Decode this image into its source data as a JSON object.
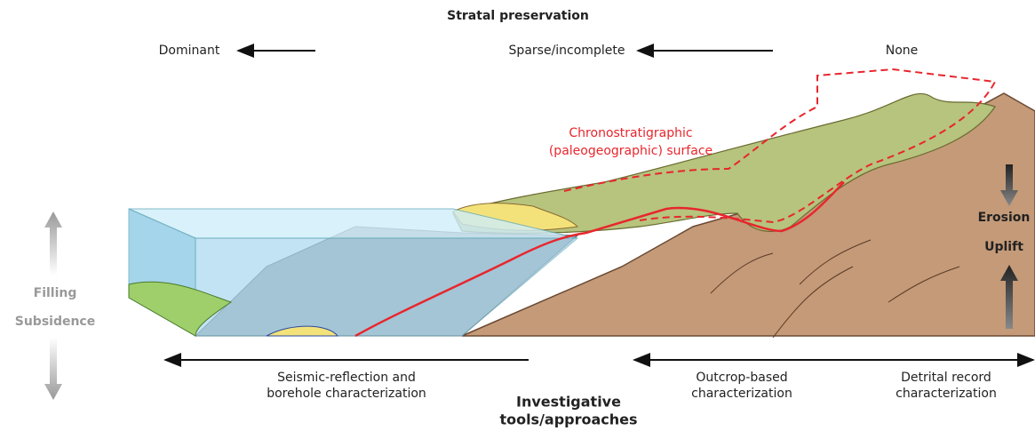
{
  "top_axis": {
    "title": "Stratal preservation",
    "labels": [
      "Dominant",
      "Sparse/incomplete",
      "None"
    ]
  },
  "annotation": {
    "lines": [
      "Chronostratigraphic",
      "(paleogeographic) surface"
    ]
  },
  "right_labels": [
    "Erosion",
    "Uplift"
  ],
  "left_labels": [
    "Filling",
    "Subsidence"
  ],
  "bottom_axis": {
    "title_lines": [
      "Investigative",
      "tools/approaches"
    ],
    "approaches": [
      {
        "lines": [
          "Seismic-reflection and",
          "borehole characterization"
        ]
      },
      {
        "lines": [
          "Outcrop-based",
          "characterization"
        ]
      },
      {
        "lines": [
          "Detrital record",
          "characterization"
        ]
      }
    ]
  }
}
